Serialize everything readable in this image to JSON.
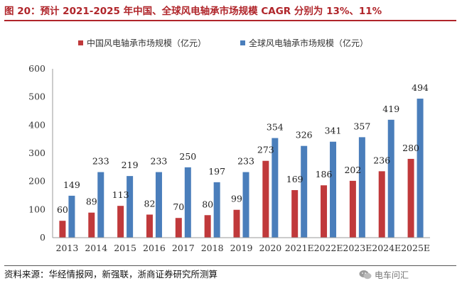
{
  "header": {
    "title": "图 20：预计 2021-2025 年中国、全球风电轴承市场规模 CAGR 分别为 13%、11%"
  },
  "footer": {
    "source": "资料来源：华经情报网，新强联，浙商证券研究所测算",
    "watermark_text": "电车问汇",
    "watermark_icon": "wechat-icon"
  },
  "chart_data": {
    "type": "bar",
    "categories": [
      "2013",
      "2014",
      "2015",
      "2016",
      "2017",
      "2018",
      "2019",
      "2020",
      "2021E",
      "2022E",
      "2023E",
      "2024E",
      "2025E"
    ],
    "series": [
      {
        "name": "中国风电轴承市场规模（亿元）",
        "color": "#c0393b",
        "values": [
          60,
          89,
          113,
          82,
          70,
          80,
          99,
          273,
          169,
          186,
          202,
          236,
          280
        ]
      },
      {
        "name": "全球风电轴承市场规模（亿元）",
        "color": "#4a7ebb",
        "values": [
          149,
          233,
          219,
          233,
          250,
          197,
          233,
          354,
          326,
          341,
          357,
          419,
          494
        ]
      }
    ],
    "yticks": [
      0,
      100,
      200,
      300,
      400,
      500,
      600
    ],
    "ylim": [
      0,
      600
    ],
    "title": "",
    "xlabel": "",
    "ylabel": "",
    "grid": false,
    "legend_position": "top-center"
  }
}
